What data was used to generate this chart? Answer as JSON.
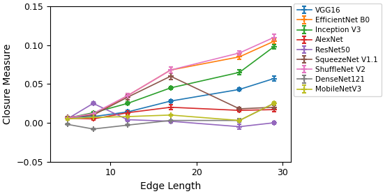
{
  "x": [
    5,
    8,
    12,
    17,
    25,
    29
  ],
  "series": {
    "VGG16": {
      "y": [
        0.007,
        0.008,
        0.014,
        0.028,
        0.043,
        0.057
      ],
      "yerr": [
        0.001,
        0.001,
        0.002,
        0.002,
        0.002,
        0.003
      ],
      "color": "#1f77b4",
      "label": "VGG16"
    },
    "EfficientNet B0": {
      "y": [
        0.007,
        0.01,
        0.035,
        0.068,
        0.085,
        0.105
      ],
      "yerr": [
        0.001,
        0.001,
        0.003,
        0.004,
        0.003,
        0.003
      ],
      "color": "#ff7f0e",
      "label": "EfficientNet B0"
    },
    "Inception V3": {
      "y": [
        0.006,
        0.013,
        0.025,
        0.045,
        0.065,
        0.098
      ],
      "yerr": [
        0.001,
        0.001,
        0.002,
        0.002,
        0.003,
        0.003
      ],
      "color": "#2ca02c",
      "label": "Inception V3"
    },
    "AlexNet": {
      "y": [
        0.006,
        0.005,
        0.013,
        0.02,
        0.016,
        0.017
      ],
      "yerr": [
        0.001,
        0.001,
        0.002,
        0.003,
        0.002,
        0.003
      ],
      "color": "#d62728",
      "label": "AlexNet"
    },
    "ResNet50": {
      "y": [
        0.005,
        0.025,
        0.004,
        0.002,
        -0.005,
        0.0
      ],
      "yerr": [
        0.001,
        0.002,
        0.002,
        0.002,
        0.003,
        0.002
      ],
      "color": "#9467bd",
      "label": "ResNet50"
    },
    "SqueezeNet V1.1": {
      "y": [
        0.007,
        0.01,
        0.033,
        0.06,
        0.018,
        0.02
      ],
      "yerr": [
        0.001,
        0.001,
        0.003,
        0.004,
        0.002,
        0.002
      ],
      "color": "#8c564b",
      "label": "SqueezeNet V1.1"
    },
    "ShuffleNet V2": {
      "y": [
        0.006,
        0.012,
        0.035,
        0.068,
        0.09,
        0.11
      ],
      "yerr": [
        0.001,
        0.001,
        0.003,
        0.004,
        0.003,
        0.004
      ],
      "color": "#e377c2",
      "label": "ShuffleNet V2"
    },
    "DenseNet121": {
      "y": [
        -0.002,
        -0.008,
        -0.003,
        0.003,
        0.003,
        0.025
      ],
      "yerr": [
        0.001,
        0.001,
        0.001,
        0.001,
        0.002,
        0.002
      ],
      "color": "#7f7f7f",
      "label": "DenseNet121"
    },
    "MobileNetV3": {
      "y": [
        0.005,
        0.007,
        0.008,
        0.01,
        0.003,
        0.025
      ],
      "yerr": [
        0.001,
        0.001,
        0.001,
        0.001,
        0.001,
        0.002
      ],
      "color": "#bcbd22",
      "label": "MobileNetV3"
    }
  },
  "xlabel": "Edge Length",
  "ylabel": "Closure Measure",
  "xlim": [
    3,
    31
  ],
  "ylim": [
    -0.05,
    0.15
  ],
  "yticks": [
    -0.05,
    0.0,
    0.05,
    0.1,
    0.15
  ],
  "xticks": [
    10,
    20,
    30
  ],
  "figsize": [
    5.52,
    2.78
  ],
  "dpi": 100
}
